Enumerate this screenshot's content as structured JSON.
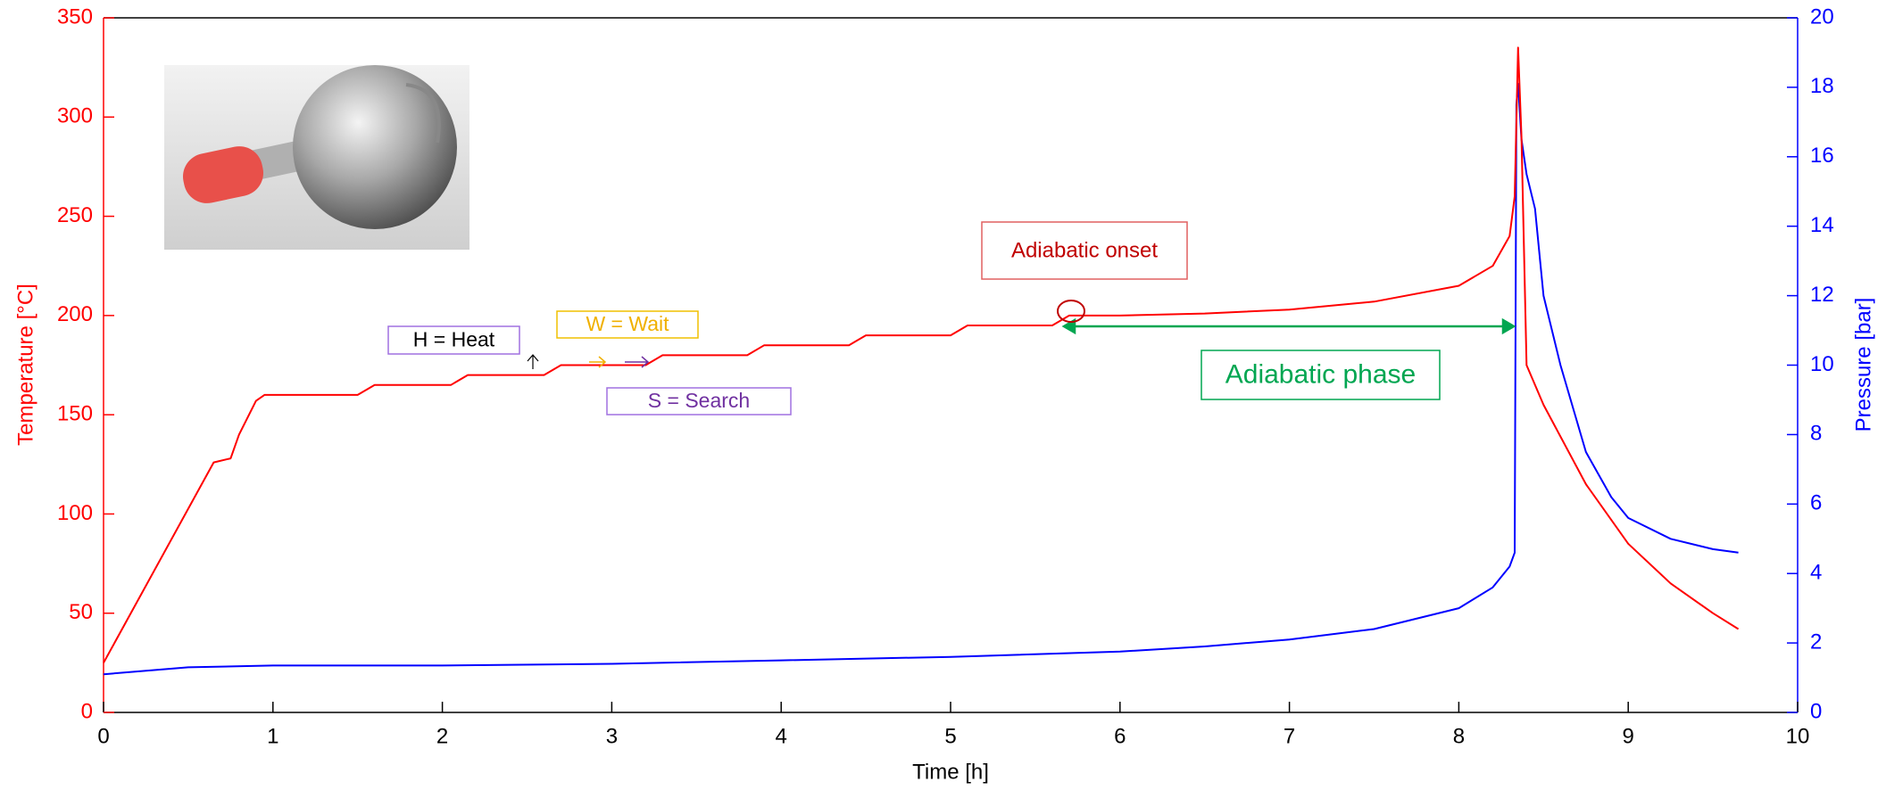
{
  "chart_data": {
    "type": "line",
    "xlabel": "Time [h]",
    "ylabel": "Temperature [°C]",
    "y2label": "Pressure [bar]",
    "xlim": [
      0,
      10
    ],
    "xticks": [
      0,
      1,
      2,
      3,
      4,
      5,
      6,
      7,
      8,
      9,
      10
    ],
    "ylim": [
      0,
      350
    ],
    "yticks": [
      0,
      50,
      100,
      150,
      200,
      250,
      300,
      350
    ],
    "y2lim": [
      0,
      20
    ],
    "y2ticks": [
      0,
      2,
      4,
      6,
      8,
      10,
      12,
      14,
      16,
      18,
      20
    ],
    "series": [
      {
        "color": "#ff0000",
        "axis": "y",
        "x": [
          0,
          0.65,
          0.75,
          0.8,
          0.9,
          0.95,
          1.5,
          1.6,
          2.05,
          2.15,
          2.6,
          2.7,
          3.2,
          3.3,
          3.8,
          3.9,
          4.4,
          4.5,
          5.0,
          5.1,
          5.6,
          5.7,
          6.0,
          6.5,
          7.0,
          7.5,
          8.0,
          8.2,
          8.3,
          8.33,
          8.35,
          8.37,
          8.4,
          8.5,
          8.75,
          9.0,
          9.25,
          9.5,
          9.65
        ],
        "values": [
          25,
          126,
          128,
          140,
          157,
          160,
          160,
          165,
          165,
          170,
          170,
          175,
          175,
          180,
          180,
          185,
          185,
          190,
          190,
          195,
          195,
          200,
          200,
          201,
          203,
          207,
          215,
          225,
          240,
          260,
          335,
          290,
          175,
          155,
          115,
          85,
          65,
          50,
          42
        ]
      },
      {
        "color": "#0000ff",
        "axis": "y2",
        "x": [
          0,
          0.5,
          1,
          2,
          3,
          4,
          5,
          6,
          6.5,
          7,
          7.5,
          8,
          8.2,
          8.3,
          8.33,
          8.34,
          8.35,
          8.37,
          8.4,
          8.45,
          8.5,
          8.6,
          8.75,
          8.9,
          9.0,
          9.25,
          9.5,
          9.65
        ],
        "values": [
          1.1,
          1.3,
          1.35,
          1.35,
          1.4,
          1.5,
          1.6,
          1.75,
          1.9,
          2.1,
          2.4,
          3.0,
          3.6,
          4.2,
          4.6,
          17.5,
          18.1,
          16.5,
          15.5,
          14.5,
          12,
          10,
          7.5,
          6.2,
          5.6,
          5.0,
          4.7,
          4.6
        ]
      }
    ],
    "annotations": [
      {
        "text": "Adiabatic onset",
        "color": "#c00000",
        "border": "#e06060"
      },
      {
        "text": "Adiabatic phase",
        "color": "#00a651",
        "border": "#00a651"
      },
      {
        "text": "H = Heat",
        "color": "#000000",
        "border": "#a070e0"
      },
      {
        "text": "W = Wait",
        "color": "#f0b000",
        "border": "#f0c000"
      },
      {
        "text": "S = Search",
        "color": "#7030a0",
        "border": "#a070e0"
      }
    ]
  }
}
